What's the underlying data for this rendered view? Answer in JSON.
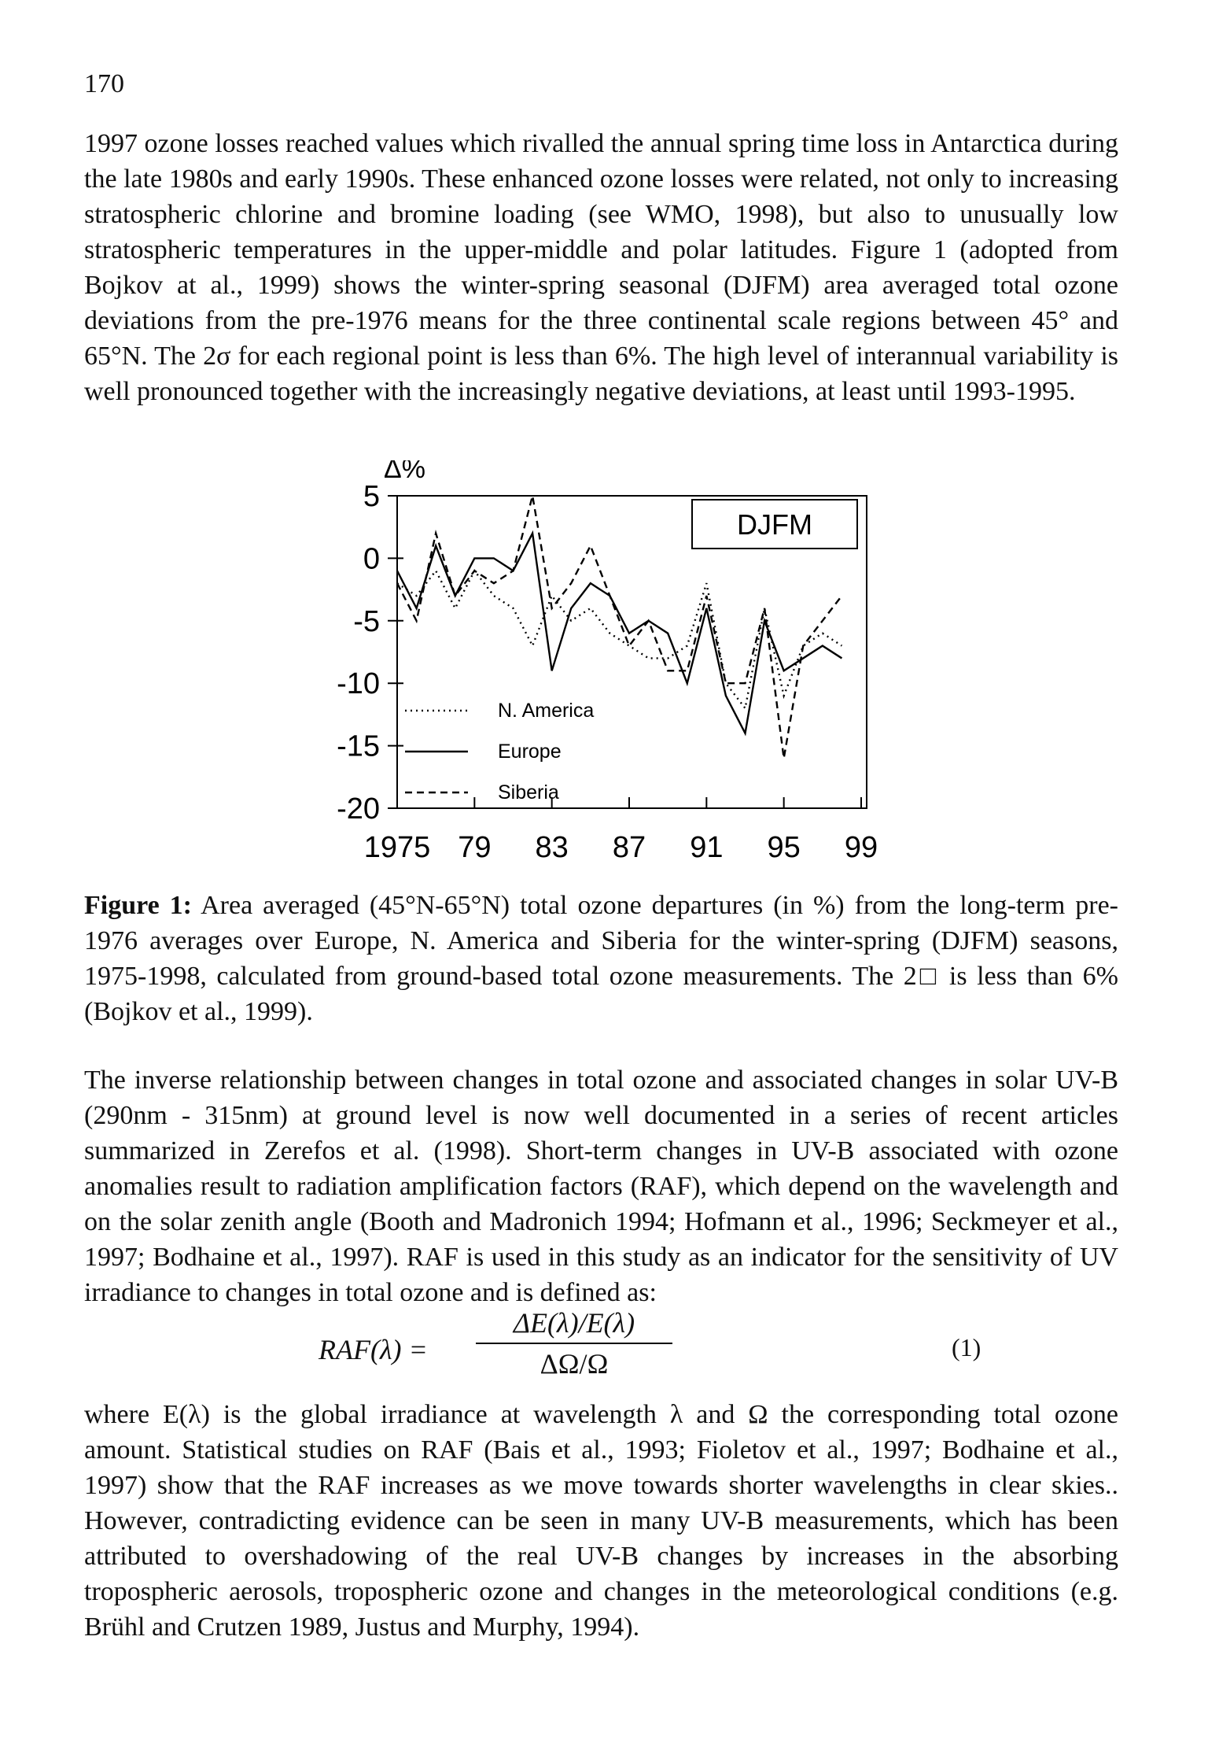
{
  "page_number": "170",
  "paragraphs": [
    "1997 ozone losses reached values which rivalled the annual spring time loss in Antarctica during the late 1980s and early 1990s. These enhanced ozone losses were related, not only to increasing stratospheric chlorine and bromine loading (see WMO, 1998), but also to unusually low stratospheric temperatures in the upper-middle and polar latitudes. Figure 1 (adopted from Bojkov at al., 1999) shows the winter-spring seasonal (DJFM) area averaged total ozone deviations from the pre-1976 means for the three continental scale regions between 45° and 65°N. The 2σ for each regional point is less than 6%. The high level of interannual variability is well pronounced together with the increasingly negative deviations, at least until 1993-1995.",
    "The inverse relationship between changes in total ozone and associated changes in solar UV-B (290nm - 315nm) at ground level is now well documented in a series of recent articles summarized in Zerefos et al. (1998). Short-term changes in UV-B associated with ozone anomalies result to radiation amplification factors (RAF), which depend on the wavelength and on the solar zenith angle (Booth and Madronich 1994; Hofmann et al., 1996; Seckmeyer et al., 1997; Bodhaine et al., 1997). RAF is used in this study as an indicator for the sensitivity of UV irradiance to changes in total ozone and is defined as:",
    "where E(λ) is the global irradiance at wavelength λ and Ω the corresponding total ozone amount. Statistical studies on RAF (Bais et al., 1993; Fioletov et al., 1997; Bodhaine et al., 1997) show that the RAF increases as we move towards shorter wavelengths in clear skies.. However, contradicting evidence can be seen in many UV-B measurements, which has been attributed to overshadowing of the real UV-B changes by increases in the absorbing tropospheric aerosols, tropospheric ozone and changes in the meteorological conditions (e.g. Brühl and Crutzen 1989, Justus and Murphy, 1994)."
  ],
  "caption": {
    "label": "Figure 1:",
    "text": "Area averaged (45°N-65°N) total ozone departures (in %) from the long-term pre-1976 averages over Europe, N. America and Siberia for the winter-spring (DJFM) seasons, 1975-1998, calculated from ground-based total ozone measurements. The 2□ is less than 6% (Bojkov et al., 1999)."
  },
  "equation": {
    "lhs": "RAF(λ) =",
    "numerator": "ΔE(λ)/E(λ)",
    "denominator": "ΔΩ/Ω",
    "number": "(1)"
  },
  "chart_data": {
    "type": "line",
    "y_label": "Δ%",
    "annotation": "DJFM",
    "x": [
      1975,
      1976,
      1977,
      1978,
      1979,
      1980,
      1981,
      1982,
      1983,
      1984,
      1985,
      1986,
      1987,
      1988,
      1989,
      1990,
      1991,
      1992,
      1993,
      1994,
      1995,
      1996,
      1997,
      1998
    ],
    "series": [
      {
        "name": "N. America",
        "color": "#000000",
        "dash": "dotted",
        "values": [
          -2,
          -3,
          -1,
          -4,
          -1,
          -3,
          -4,
          -7,
          -3,
          -5,
          -4,
          -6,
          -7,
          -8,
          -8,
          -7,
          -2,
          -10,
          -12,
          -4,
          -11,
          -7,
          -6,
          -7
        ]
      },
      {
        "name": "Europe",
        "color": "#000000",
        "dash": "solid",
        "values": [
          -1,
          -4,
          1,
          -3,
          0,
          0,
          -1,
          2,
          -9,
          -4,
          -2,
          -3,
          -6,
          -5,
          -6,
          -10,
          -4,
          -11,
          -14,
          -5,
          -9,
          -8,
          -7,
          -8
        ]
      },
      {
        "name": "Siberia",
        "color": "#000000",
        "dash": "dashed",
        "values": [
          -2,
          -5,
          2,
          -3,
          -1,
          -2,
          -1,
          5,
          -4,
          -2,
          1,
          -3,
          -7,
          -5,
          -9,
          -9,
          -3,
          -10,
          -10,
          -4,
          -16,
          -7,
          -5,
          -3
        ]
      }
    ],
    "xlim": [
      1975,
      1999
    ],
    "xticks": [
      1975,
      {
        "value": 1979,
        "label": "79"
      },
      {
        "value": 1983,
        "label": "83"
      },
      {
        "value": 1987,
        "label": "87"
      },
      {
        "value": 1991,
        "label": "91"
      },
      {
        "value": 1995,
        "label": "95"
      },
      {
        "value": 1999,
        "label": "99"
      }
    ],
    "ylim": [
      -20,
      5
    ],
    "yticks": [
      5,
      0,
      -5,
      -10,
      -15,
      -20
    ],
    "grid": false,
    "legend": "lower-left"
  }
}
